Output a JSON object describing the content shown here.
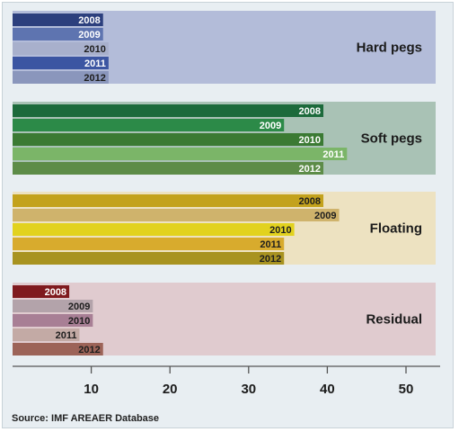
{
  "chart_data": {
    "type": "bar",
    "orientation": "horizontal",
    "x_ticks": [
      10,
      20,
      30,
      40,
      50
    ],
    "xlim": [
      0,
      55
    ],
    "source": "Source: IMF AREAER Database",
    "groups": [
      {
        "name": "Hard pegs",
        "background": "#b3bcd9",
        "bars": [
          {
            "label": "2008",
            "value": 11.5,
            "color": "#2c3f7d",
            "text": "light"
          },
          {
            "label": "2009",
            "value": 11.5,
            "color": "#5e74b0",
            "text": "light"
          },
          {
            "label": "2010",
            "value": 12.2,
            "color": "#a8b0cc",
            "text": "dark"
          },
          {
            "label": "2011",
            "value": 12.2,
            "color": "#3b55a2",
            "text": "light"
          },
          {
            "label": "2012",
            "value": 12.2,
            "color": "#8a96bc",
            "text": "dark"
          }
        ]
      },
      {
        "name": "Soft pegs",
        "background": "#a9c2b5",
        "bars": [
          {
            "label": "2008",
            "value": 39.5,
            "color": "#1c6a3b",
            "text": "light"
          },
          {
            "label": "2009",
            "value": 34.5,
            "color": "#2c8a48",
            "text": "light"
          },
          {
            "label": "2010",
            "value": 39.5,
            "color": "#3b7a33",
            "text": "light"
          },
          {
            "label": "2011",
            "value": 42.5,
            "color": "#7bb568",
            "text": "light"
          },
          {
            "label": "2012",
            "value": 39.5,
            "color": "#5d8c48",
            "text": "light"
          }
        ]
      },
      {
        "name": "Floating",
        "background": "#ede2c1",
        "bars": [
          {
            "label": "2008",
            "value": 39.5,
            "color": "#c3a21c",
            "text": "dark"
          },
          {
            "label": "2009",
            "value": 41.5,
            "color": "#cfb36c",
            "text": "dark"
          },
          {
            "label": "2010",
            "value": 35.8,
            "color": "#e2d21e",
            "text": "dark"
          },
          {
            "label": "2011",
            "value": 34.5,
            "color": "#d8ab2d",
            "text": "dark"
          },
          {
            "label": "2012",
            "value": 34.5,
            "color": "#a89320",
            "text": "dark"
          }
        ]
      },
      {
        "name": "Residual",
        "background": "#e0cbcf",
        "bars": [
          {
            "label": "2008",
            "value": 7.2,
            "color": "#7f1a1e",
            "text": "light"
          },
          {
            "label": "2009",
            "value": 10.2,
            "color": "#b3a3aa",
            "text": "dark"
          },
          {
            "label": "2010",
            "value": 10.2,
            "color": "#a87f95",
            "text": "dark"
          },
          {
            "label": "2011",
            "value": 8.5,
            "color": "#c3aaa5",
            "text": "dark"
          },
          {
            "label": "2012",
            "value": 11.5,
            "color": "#9c6358",
            "text": "dark"
          }
        ]
      }
    ]
  }
}
